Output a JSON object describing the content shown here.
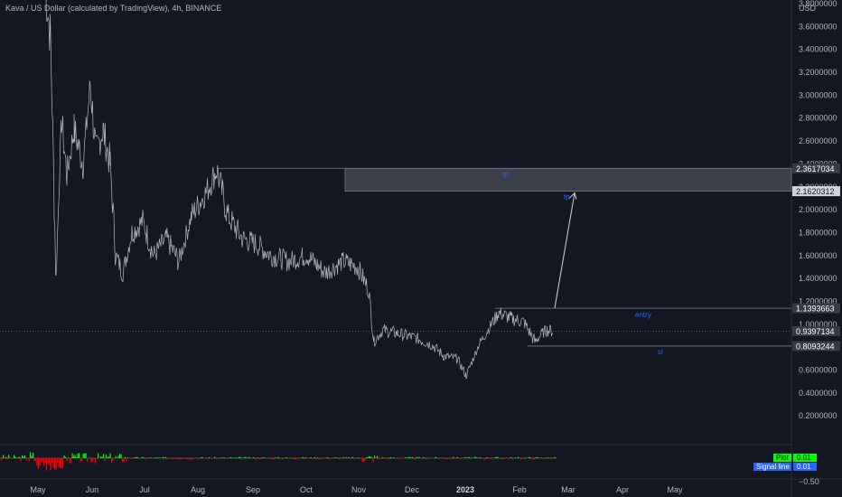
{
  "header": {
    "symbol_title": "Kava / US Dollar (calculated by TradingView), 4h, BINANCE"
  },
  "price_axis": {
    "currency_label": "USD",
    "ticks": [
      "3.8000000",
      "3.6000000",
      "3.4000000",
      "3.2000000",
      "3.0000000",
      "2.8000000",
      "2.6000000",
      "2.4000000",
      "2.2000000",
      "2.0000000",
      "1.8000000",
      "1.6000000",
      "1.4000000",
      "1.2000000",
      "1.0000000",
      "0.6000000",
      "0.4000000",
      "0.2000000",
      "−0.50"
    ],
    "tick_values": [
      3.8,
      3.6,
      3.4,
      3.2,
      3.0,
      2.8,
      2.6,
      2.4,
      2.2,
      2.0,
      1.8,
      1.6,
      1.4,
      1.2,
      1.0,
      0.6,
      0.4,
      0.2
    ]
  },
  "time_axis": {
    "labels": [
      "May",
      "Jun",
      "Jul",
      "Aug",
      "Sep",
      "Oct",
      "Nov",
      "Dec",
      "2023",
      "Feb",
      "Mar",
      "Apr",
      "May"
    ]
  },
  "price_tags": [
    {
      "label": "2.3617034",
      "value": 2.3617034,
      "color": "#363a45",
      "text_color": "#ffffff"
    },
    {
      "label": "2.1620312",
      "value": 2.1620312,
      "color": "#d1d4dc",
      "text_color": "#131722"
    },
    {
      "label": "1.1393663",
      "value": 1.1393663,
      "color": "#363a45",
      "text_color": "#ffffff"
    },
    {
      "label": "0.9397134",
      "value": 0.9397134,
      "color": "#363a45",
      "text_color": "#ffffff"
    },
    {
      "label": "0.8093244",
      "value": 0.8093244,
      "color": "#363a45",
      "text_color": "#ffffff"
    }
  ],
  "annotations": {
    "tp_label": "tp",
    "tp_arrow_label": "tp",
    "entry_label": "entry",
    "sl_label": "sl"
  },
  "indicator": {
    "plot_label": "Plot",
    "plot_value": "0.01",
    "plot_color": "#00ff00",
    "signal_label": "Signal line",
    "signal_value": "0.01",
    "signal_color": "#2962ff",
    "positive_color": "#00ff00",
    "negative_color": "#ff0000"
  },
  "chart_data": {
    "type": "line",
    "title": "Kava / US Dollar (calculated by TradingView), 4h, BINANCE",
    "xlabel": "",
    "ylabel": "USD",
    "ylim": [
      0.1,
      4.0
    ],
    "x": [
      "May",
      "Jun",
      "Jul",
      "Aug",
      "Sep",
      "Oct",
      "Nov",
      "Dec",
      "2023",
      "Feb",
      "Mar"
    ],
    "series": [
      {
        "values": [
          3.95,
          2.6,
          1.55,
          2.35,
          1.55,
          1.55,
          0.92,
          0.85,
          0.62,
          1.05,
          0.94
        ]
      }
    ],
    "levels": {
      "tp_high": 2.3617034,
      "tp_low": 2.1620312,
      "entry": 1.1393663,
      "current": 0.9397134,
      "sl": 0.8093244
    },
    "grid": false,
    "legend": "bottom-right"
  }
}
